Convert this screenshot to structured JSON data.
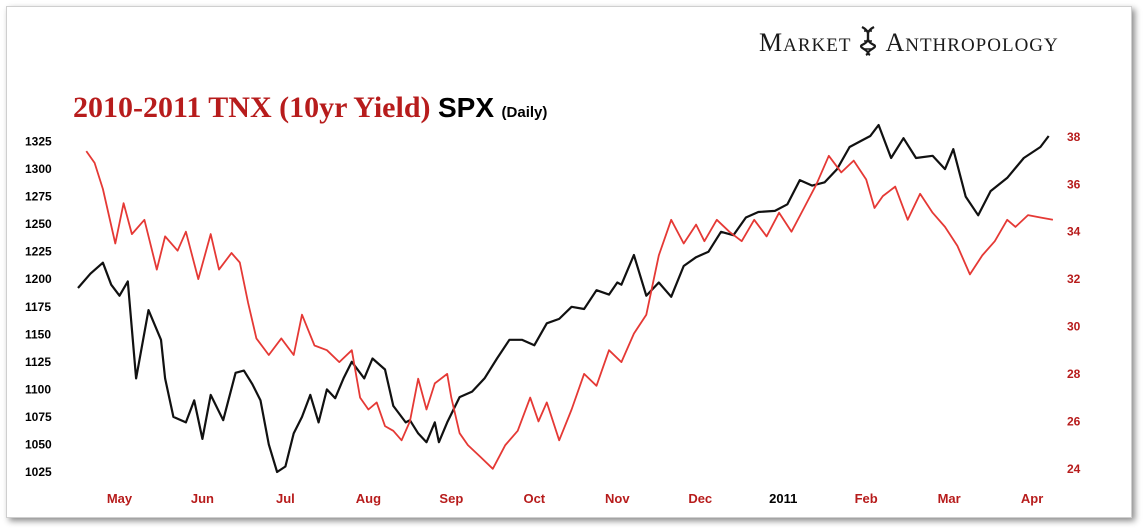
{
  "brand": {
    "word1_initial": "M",
    "word1_rest": "ARKET",
    "word2_initial": "A",
    "word2_rest": "NTHROPOLOGY",
    "logo_icon": "dna-helix-icon"
  },
  "title": {
    "part_red": "2010-2011 TNX (10yr Yield)",
    "part_black": "SPX",
    "part_small": "(Daily)"
  },
  "colors": {
    "spx": "#111111",
    "tnx": "#e53935",
    "right_axis": "#b71c1c",
    "month_labels": "#b71c1c",
    "year_label": "#000000"
  },
  "chart_data": {
    "type": "line",
    "title": "2010-2011 TNX (10yr Yield) SPX (Daily)",
    "xlabel": "",
    "ylabel_left": "",
    "ylabel_right": "",
    "grid": false,
    "x_labels": [
      "May",
      "Jun",
      "Jul",
      "Aug",
      "Sep",
      "Oct",
      "Nov",
      "Dec",
      "2011",
      "Feb",
      "Mar",
      "Apr"
    ],
    "x_label_positions": [
      0.5,
      1.5,
      2.5,
      3.5,
      4.5,
      5.5,
      6.5,
      7.5,
      8.5,
      9.5,
      10.5,
      11.5
    ],
    "xlim": [
      0,
      11.8
    ],
    "y_left": {
      "ticks": [
        1025,
        1050,
        1075,
        1100,
        1125,
        1150,
        1175,
        1200,
        1225,
        1250,
        1275,
        1300,
        1325
      ],
      "lim": [
        1015,
        1340
      ]
    },
    "y_right": {
      "ticks": [
        24,
        26,
        28,
        30,
        32,
        34,
        36,
        38
      ],
      "lim": [
        23.4,
        38.5
      ]
    },
    "series": [
      {
        "name": "SPX",
        "axis": "left",
        "x": [
          0,
          0.15,
          0.3,
          0.4,
          0.5,
          0.6,
          0.7,
          0.85,
          1.0,
          1.05,
          1.15,
          1.3,
          1.4,
          1.5,
          1.6,
          1.75,
          1.9,
          2.0,
          2.1,
          2.2,
          2.3,
          2.4,
          2.5,
          2.6,
          2.7,
          2.8,
          2.9,
          3.0,
          3.1,
          3.2,
          3.3,
          3.45,
          3.55,
          3.7,
          3.8,
          3.95,
          4.0,
          4.1,
          4.2,
          4.3,
          4.35,
          4.45,
          4.6,
          4.75,
          4.9,
          5.05,
          5.2,
          5.35,
          5.5,
          5.65,
          5.8,
          5.95,
          6.1,
          6.25,
          6.4,
          6.5,
          6.55,
          6.7,
          6.85,
          7.0,
          7.15,
          7.3,
          7.45,
          7.6,
          7.75,
          7.9,
          8.05,
          8.2,
          8.4,
          8.55,
          8.7,
          8.85,
          9.0,
          9.15,
          9.3,
          9.45,
          9.55,
          9.65,
          9.8,
          9.95,
          10.1,
          10.3,
          10.45,
          10.55,
          10.7,
          10.85,
          11.0,
          11.2,
          11.4,
          11.6,
          11.7
        ],
        "values": [
          1192,
          1205,
          1215,
          1195,
          1185,
          1198,
          1110,
          1172,
          1145,
          1110,
          1075,
          1070,
          1090,
          1055,
          1095,
          1072,
          1115,
          1117,
          1105,
          1090,
          1050,
          1025,
          1030,
          1060,
          1075,
          1095,
          1070,
          1100,
          1092,
          1110,
          1125,
          1110,
          1128,
          1118,
          1085,
          1070,
          1072,
          1060,
          1052,
          1070,
          1052,
          1070,
          1093,
          1098,
          1110,
          1128,
          1145,
          1145,
          1140,
          1160,
          1164,
          1175,
          1173,
          1190,
          1186,
          1197,
          1195,
          1222,
          1185,
          1197,
          1184,
          1212,
          1220,
          1225,
          1243,
          1240,
          1256,
          1261,
          1262,
          1268,
          1290,
          1285,
          1288,
          1300,
          1320,
          1326,
          1330,
          1340,
          1310,
          1328,
          1310,
          1312,
          1300,
          1318,
          1275,
          1258,
          1280,
          1292,
          1310,
          1320,
          1330
        ]
      },
      {
        "name": "TNX",
        "axis": "right",
        "x": [
          0.1,
          0.2,
          0.3,
          0.45,
          0.55,
          0.65,
          0.8,
          0.95,
          1.05,
          1.2,
          1.3,
          1.45,
          1.6,
          1.7,
          1.85,
          1.95,
          2.05,
          2.15,
          2.3,
          2.45,
          2.6,
          2.7,
          2.85,
          3.0,
          3.15,
          3.3,
          3.4,
          3.5,
          3.6,
          3.7,
          3.8,
          3.9,
          4.0,
          4.1,
          4.2,
          4.3,
          4.45,
          4.5,
          4.6,
          4.7,
          4.85,
          5.0,
          5.15,
          5.3,
          5.45,
          5.55,
          5.65,
          5.8,
          5.95,
          6.1,
          6.25,
          6.4,
          6.55,
          6.7,
          6.85,
          7.0,
          7.15,
          7.3,
          7.45,
          7.55,
          7.7,
          7.85,
          8.0,
          8.15,
          8.3,
          8.45,
          8.6,
          8.75,
          8.9,
          9.05,
          9.2,
          9.35,
          9.5,
          9.6,
          9.7,
          9.85,
          10.0,
          10.15,
          10.3,
          10.45,
          10.6,
          10.75,
          10.9,
          11.05,
          11.2,
          11.3,
          11.45,
          11.6,
          11.75
        ],
        "values": [
          37.4,
          36.9,
          35.8,
          33.5,
          35.2,
          33.9,
          34.5,
          32.4,
          33.8,
          33.2,
          34.0,
          32.0,
          33.9,
          32.4,
          33.1,
          32.7,
          31.0,
          29.5,
          28.8,
          29.5,
          28.8,
          30.5,
          29.2,
          29.0,
          28.5,
          29.0,
          27.0,
          26.5,
          26.8,
          25.8,
          25.6,
          25.2,
          26.0,
          27.8,
          26.5,
          27.6,
          28.0,
          27.0,
          25.5,
          25.0,
          24.5,
          24.0,
          25.0,
          25.6,
          27.0,
          26.0,
          26.8,
          25.2,
          26.5,
          28.0,
          27.5,
          29.0,
          28.5,
          29.7,
          30.5,
          33.0,
          34.5,
          33.5,
          34.3,
          33.6,
          34.5,
          34.0,
          33.6,
          34.5,
          33.8,
          34.8,
          34.0,
          35.0,
          36.0,
          37.2,
          36.5,
          37.0,
          36.2,
          35.0,
          35.5,
          35.9,
          34.5,
          35.6,
          34.8,
          34.2,
          33.4,
          32.2,
          33.0,
          33.6,
          34.5,
          34.2,
          34.7,
          34.6,
          34.5
        ]
      }
    ]
  }
}
